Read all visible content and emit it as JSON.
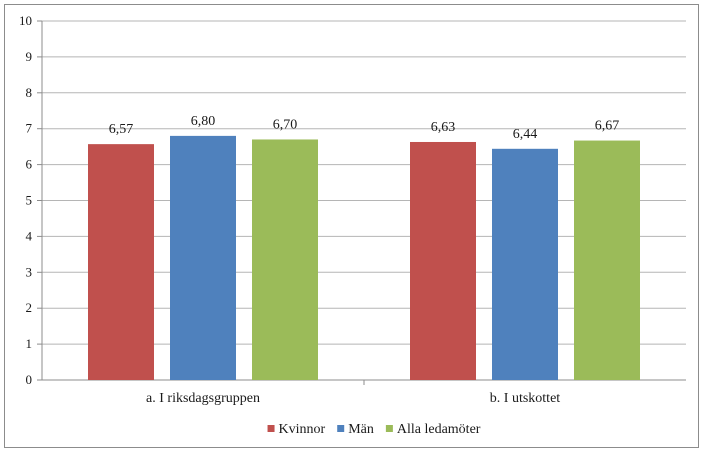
{
  "chart_data": {
    "type": "bar",
    "categories": [
      "a. I riksdagsgruppen",
      "b. I utskottet"
    ],
    "series": [
      {
        "name": "Kvinnor",
        "values": [
          6.57,
          6.63
        ],
        "labels": [
          "6,57",
          "6,63"
        ],
        "color": "#c0504d"
      },
      {
        "name": "Män",
        "values": [
          6.8,
          6.44
        ],
        "labels": [
          "6,80",
          "6,44"
        ],
        "color": "#4f81bd"
      },
      {
        "name": "Alla ledamöter",
        "values": [
          6.7,
          6.67
        ],
        "labels": [
          "6,70",
          "6,67"
        ],
        "color": "#9bbb59"
      }
    ],
    "ylim": [
      0,
      10
    ],
    "yticks": [
      "0",
      "1",
      "2",
      "3",
      "4",
      "5",
      "6",
      "7",
      "8",
      "9",
      "10"
    ],
    "grid": true,
    "legend_position": "bottom"
  }
}
